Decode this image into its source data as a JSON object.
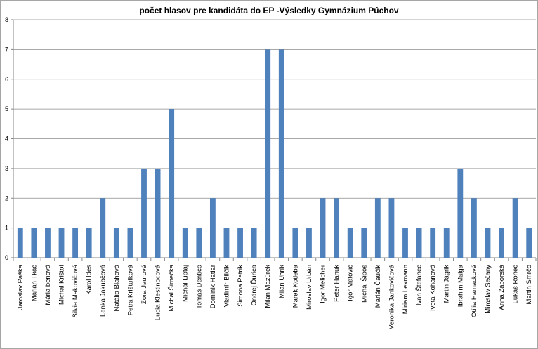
{
  "chart_data": {
    "type": "bar",
    "title": "počet hlasov pre kandidáta do EP -Výsledky Gymnázium Púchov",
    "xlabel": "",
    "ylabel": "",
    "ylim": [
      0,
      8
    ],
    "yticks": [
      0,
      1,
      2,
      3,
      4,
      5,
      6,
      7,
      8
    ],
    "grid": "horizontal",
    "legend": "none",
    "bar_color": "#4f81bd",
    "categories": [
      "Jaroslav Paška",
      "Marián Tkáč",
      "Mária benová",
      "Michal Krištof",
      "Silvia Makovičová",
      "Karol Ides",
      "Lenka Jakubčová",
      "Natália Blahová",
      "Petra Krištufková",
      "Zora Jaurová",
      "Lucia Klestinocová",
      "Michal Šimečka",
      "Michal Liptaj",
      "Tomáš Dentico",
      "Dominik Hatiar",
      "Vladimír Bilčík",
      "Simona Petrík",
      "Ondrej Ďurica",
      "Milan Mazúrek",
      "Milan Uhrík",
      "Marek Kotleba",
      "Miroslav Urbán",
      "Igor Melicher",
      "Peter Hanúk",
      "Igor Matovič",
      "Michal Šipoš",
      "Marián Čaučík",
      "Veronika Jankovičová",
      "Miriam Lexmann",
      "Ivan Štefanec",
      "Iveta Kohanová",
      "Martin Jágrik",
      "Ibrahim Maiga",
      "Otília Hamacková",
      "Miroslav Sečany",
      "Anna Záborská",
      "Lukáš Ronec",
      "Martin Smrčo"
    ],
    "values": [
      1,
      1,
      1,
      1,
      1,
      1,
      2,
      1,
      1,
      3,
      3,
      5,
      1,
      1,
      2,
      1,
      1,
      1,
      7,
      7,
      1,
      1,
      2,
      2,
      1,
      1,
      2,
      2,
      1,
      1,
      1,
      1,
      3,
      2,
      1,
      1,
      2,
      1
    ]
  }
}
